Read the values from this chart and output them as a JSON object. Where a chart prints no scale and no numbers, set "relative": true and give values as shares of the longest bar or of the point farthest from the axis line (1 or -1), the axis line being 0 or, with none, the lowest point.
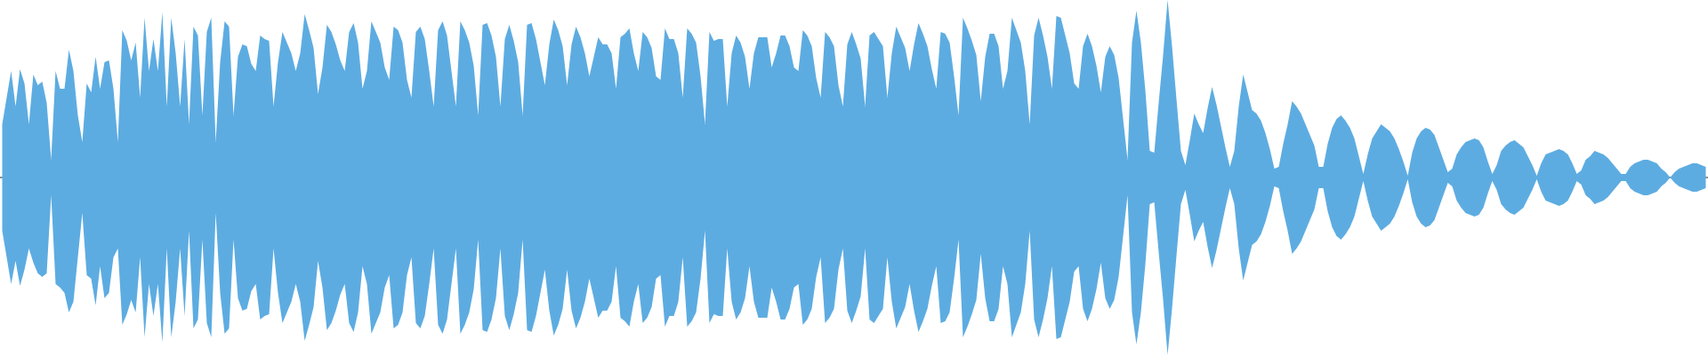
{
  "chart_data": {
    "type": "area",
    "relative": true,
    "categories": [
      null,
      null,
      null,
      null,
      null,
      null,
      null,
      null,
      null,
      null,
      null,
      null,
      null,
      null,
      null,
      null,
      null,
      null,
      null,
      null,
      null,
      null,
      null,
      null,
      null,
      null,
      null,
      null,
      null,
      null,
      null,
      null,
      null,
      null,
      null,
      null,
      null,
      null,
      null,
      null,
      null,
      null,
      null,
      null,
      null,
      null,
      null,
      null,
      null,
      null,
      null,
      null,
      null,
      null,
      null,
      null,
      null,
      null,
      null,
      null,
      null,
      null,
      null,
      null,
      null,
      null,
      null,
      null,
      null,
      null,
      null,
      null,
      null,
      null,
      null,
      null,
      null,
      null,
      null,
      null,
      null,
      null,
      null,
      null,
      null,
      null,
      null,
      null,
      null,
      null,
      null,
      null,
      null,
      null,
      null,
      null,
      null,
      null,
      null,
      null,
      null,
      null,
      null,
      null,
      null,
      null,
      null,
      null,
      null,
      null,
      null,
      null,
      null,
      null,
      null,
      null,
      null,
      null,
      null,
      null,
      null,
      null,
      null,
      null,
      null,
      null,
      null,
      null,
      null,
      null,
      null,
      null,
      null,
      null,
      null,
      null,
      null,
      null,
      null,
      null,
      null,
      null,
      null,
      null,
      null,
      null,
      null,
      null,
      null,
      null,
      null,
      null,
      null,
      null,
      null,
      null,
      null,
      null,
      null,
      null,
      null,
      null,
      null,
      null,
      null,
      null,
      null,
      null,
      null,
      null,
      null,
      null,
      null,
      null,
      null,
      null,
      null,
      null,
      null,
      null,
      null,
      null,
      null,
      null,
      null,
      null,
      null,
      null,
      null,
      null,
      null,
      null,
      null,
      null,
      null,
      null,
      null,
      null,
      null,
      null,
      null,
      null,
      null,
      null,
      null,
      null,
      null,
      null,
      null,
      null,
      null,
      null,
      null,
      null,
      null,
      null,
      null,
      null,
      null,
      null,
      null,
      null,
      null,
      null,
      null,
      null,
      null,
      null,
      null,
      null,
      null,
      null,
      null,
      null,
      null,
      null,
      null,
      null,
      null,
      null,
      null,
      null,
      null,
      null,
      null,
      null,
      null,
      null,
      null,
      null,
      null,
      null,
      null,
      null,
      null,
      null,
      null,
      null,
      null,
      null,
      null,
      null,
      null,
      null,
      null,
      null,
      null,
      null,
      null,
      null,
      null,
      null,
      null,
      null,
      null,
      null,
      null,
      null,
      null,
      null,
      null,
      null,
      null,
      null,
      null,
      null,
      null,
      null,
      null,
      null,
      null,
      null,
      null,
      null,
      null,
      null,
      null,
      null,
      null,
      null,
      null,
      null,
      null,
      null,
      null,
      null,
      null,
      null,
      null,
      null,
      null,
      null,
      null,
      null,
      null,
      null,
      null,
      null,
      null,
      null,
      null,
      null,
      null,
      null,
      null,
      null,
      null,
      null,
      null,
      null,
      null,
      null,
      null,
      null,
      null,
      null,
      null,
      null,
      null,
      null,
      null,
      null,
      null,
      null,
      null,
      null,
      null,
      null,
      null,
      null,
      null,
      null,
      null,
      null,
      null,
      null,
      null,
      null,
      null,
      null,
      null,
      null,
      null,
      null,
      null,
      null,
      null,
      null,
      null,
      null,
      null,
      null,
      null,
      null,
      null,
      null,
      null,
      null,
      null,
      null,
      null,
      null,
      null,
      null
    ],
    "series": [
      {
        "color": "#5dace1",
        "values": [
          0.3,
          0.45,
          0.6,
          0.4,
          0.61,
          0.53,
          0.3,
          0.58,
          0.52,
          0.54,
          0.42,
          0.1,
          0.6,
          0.5,
          0.5,
          0.72,
          0.6,
          0.35,
          0.2,
          0.53,
          0.48,
          0.68,
          0.5,
          0.65,
          0.66,
          0.5,
          0.2,
          0.83,
          0.77,
          0.66,
          0.76,
          0.45,
          0.9,
          0.6,
          0.78,
          0.6,
          0.93,
          0.4,
          0.9,
          0.7,
          0.4,
          0.78,
          0.3,
          0.85,
          0.8,
          0.35,
          0.82,
          0.9,
          0.2,
          0.65,
          0.88,
          0.85,
          0.35,
          0.68,
          0.75,
          0.74,
          0.64,
          0.6,
          0.8,
          0.78,
          0.77,
          0.4,
          0.65,
          0.82,
          0.76,
          0.7,
          0.6,
          0.7,
          0.92,
          0.83,
          0.73,
          0.47,
          0.62,
          0.86,
          0.82,
          0.75,
          0.66,
          0.6,
          0.82,
          0.87,
          0.76,
          0.5,
          0.6,
          0.88,
          0.82,
          0.76,
          0.62,
          0.55,
          0.85,
          0.83,
          0.76,
          0.55,
          0.45,
          0.82,
          0.85,
          0.78,
          0.6,
          0.4,
          0.83,
          0.88,
          0.8,
          0.6,
          0.4,
          0.88,
          0.83,
          0.76,
          0.63,
          0.35,
          0.86,
          0.87,
          0.8,
          0.68,
          0.4,
          0.78,
          0.86,
          0.77,
          0.65,
          0.35,
          0.86,
          0.87,
          0.78,
          0.65,
          0.52,
          0.75,
          0.89,
          0.83,
          0.74,
          0.52,
          0.75,
          0.85,
          0.79,
          0.7,
          0.57,
          0.68,
          0.79,
          0.75,
          0.75,
          0.7,
          0.5,
          0.79,
          0.81,
          0.84,
          0.7,
          0.6,
          0.82,
          0.79,
          0.73,
          0.57,
          0.55,
          0.84,
          0.78,
          0.78,
          0.7,
          0.45,
          0.84,
          0.81,
          0.76,
          0.57,
          0.3,
          0.82,
          0.77,
          0.78,
          0.78,
          0.4,
          0.7,
          0.8,
          0.76,
          0.68,
          0.5,
          0.7,
          0.79,
          0.79,
          0.79,
          0.62,
          0.7,
          0.8,
          0.8,
          0.74,
          0.62,
          0.6,
          0.83,
          0.8,
          0.74,
          0.56,
          0.45,
          0.82,
          0.79,
          0.74,
          0.52,
          0.4,
          0.75,
          0.82,
          0.75,
          0.67,
          0.4,
          0.8,
          0.82,
          0.78,
          0.74,
          0.45,
          0.7,
          0.85,
          0.79,
          0.73,
          0.6,
          0.75,
          0.87,
          0.81,
          0.74,
          0.61,
          0.5,
          0.82,
          0.81,
          0.76,
          0.57,
          0.35,
          0.9,
          0.84,
          0.77,
          0.69,
          0.43,
          0.68,
          0.81,
          0.81,
          0.74,
          0.5,
          0.6,
          0.9,
          0.83,
          0.76,
          0.6,
          0.3,
          0.8,
          0.9,
          0.8,
          0.68,
          0.5,
          0.91,
          0.9,
          0.8,
          0.7,
          0.53,
          0.5,
          0.74,
          0.81,
          0.74,
          0.63,
          0.48,
          0.68,
          0.74,
          0.69,
          0.56,
          0.33,
          0.1,
          0.76,
          0.94,
          0.76,
          0.49,
          0.15,
          0.14,
          0.42,
          0.69,
          1,
          0.74,
          0.44,
          0.15,
          0.07,
          0.21,
          0.36,
          0.3,
          0.25,
          0.39,
          0.51,
          0.41,
          0.29,
          0.17,
          0.06,
          0.15,
          0.4,
          0.58,
          0.48,
          0.38,
          0.36,
          0.32,
          0.25,
          0.16,
          0.05,
          0.06,
          0.19,
          0.3,
          0.43,
          0.4,
          0.36,
          0.3,
          0.24,
          0.18,
          0.06,
          0.06,
          0.19,
          0.28,
          0.33,
          0.35,
          0.32,
          0.28,
          0.22,
          0.12,
          0.02,
          0.13,
          0.22,
          0.26,
          0.3,
          0.28,
          0.26,
          0.22,
          0.16,
          0.09,
          0.01,
          0.14,
          0.22,
          0.26,
          0.28,
          0.27,
          0.24,
          0.17,
          0.1,
          0.03,
          0.05,
          0.13,
          0.17,
          0.2,
          0.21,
          0.22,
          0.21,
          0.17,
          0.09,
          0.02,
          0.07,
          0.15,
          0.18,
          0.2,
          0.21,
          0.19,
          0.17,
          0.12,
          0.07,
          0.01,
          0.08,
          0.13,
          0.14,
          0.15,
          0.16,
          0.15,
          0.13,
          0.08,
          0.02,
          0.04,
          0.1,
          0.12,
          0.15,
          0.14,
          0.13,
          0.11,
          0.08,
          0.05,
          0.02,
          0.02,
          0.06,
          0.08,
          0.09,
          0.1,
          0.1,
          0.09,
          0.08,
          0.05,
          0.03,
          0,
          0.03,
          0.05,
          0.06,
          0.07,
          0.08,
          0.08,
          0.07,
          0.06
        ]
      },
      {
        "color": "#5dace1",
        "values": [
          -0.3,
          -0.45,
          -0.6,
          -0.47,
          -0.61,
          -0.52,
          -0.4,
          -0.48,
          -0.54,
          -0.56,
          -0.54,
          -0.1,
          -0.6,
          -0.62,
          -0.65,
          -0.76,
          -0.7,
          -0.45,
          -0.2,
          -0.55,
          -0.57,
          -0.72,
          -0.5,
          -0.68,
          -0.65,
          -0.45,
          -0.4,
          -0.83,
          -0.77,
          -0.69,
          -0.76,
          -0.45,
          -0.9,
          -0.6,
          -0.78,
          -0.6,
          -0.93,
          -0.4,
          -0.9,
          -0.7,
          -0.4,
          -0.78,
          -0.3,
          -0.85,
          -0.8,
          -0.35,
          -0.82,
          -0.9,
          -0.2,
          -0.65,
          -0.88,
          -0.85,
          -0.35,
          -0.68,
          -0.75,
          -0.74,
          -0.64,
          -0.6,
          -0.8,
          -0.78,
          -0.77,
          -0.4,
          -0.65,
          -0.82,
          -0.76,
          -0.7,
          -0.6,
          -0.7,
          -0.92,
          -0.83,
          -0.73,
          -0.47,
          -0.62,
          -0.86,
          -0.82,
          -0.75,
          -0.66,
          -0.6,
          -0.82,
          -0.87,
          -0.76,
          -0.5,
          -0.6,
          -0.88,
          -0.82,
          -0.76,
          -0.62,
          -0.55,
          -0.85,
          -0.83,
          -0.76,
          -0.55,
          -0.45,
          -0.82,
          -0.85,
          -0.78,
          -0.6,
          -0.4,
          -0.83,
          -0.88,
          -0.8,
          -0.6,
          -0.4,
          -0.88,
          -0.83,
          -0.76,
          -0.63,
          -0.35,
          -0.86,
          -0.87,
          -0.8,
          -0.68,
          -0.4,
          -0.78,
          -0.86,
          -0.77,
          -0.65,
          -0.35,
          -0.86,
          -0.87,
          -0.78,
          -0.65,
          -0.52,
          -0.75,
          -0.89,
          -0.83,
          -0.74,
          -0.52,
          -0.75,
          -0.85,
          -0.79,
          -0.7,
          -0.57,
          -0.68,
          -0.79,
          -0.75,
          -0.75,
          -0.7,
          -0.5,
          -0.79,
          -0.81,
          -0.84,
          -0.7,
          -0.6,
          -0.82,
          -0.79,
          -0.73,
          -0.57,
          -0.55,
          -0.84,
          -0.78,
          -0.78,
          -0.7,
          -0.45,
          -0.84,
          -0.81,
          -0.76,
          -0.57,
          -0.3,
          -0.82,
          -0.77,
          -0.78,
          -0.78,
          -0.4,
          -0.7,
          -0.8,
          -0.76,
          -0.68,
          -0.5,
          -0.7,
          -0.79,
          -0.79,
          -0.79,
          -0.62,
          -0.7,
          -0.8,
          -0.8,
          -0.74,
          -0.62,
          -0.6,
          -0.83,
          -0.8,
          -0.74,
          -0.56,
          -0.45,
          -0.82,
          -0.79,
          -0.74,
          -0.52,
          -0.4,
          -0.75,
          -0.82,
          -0.75,
          -0.67,
          -0.4,
          -0.8,
          -0.82,
          -0.78,
          -0.74,
          -0.45,
          -0.7,
          -0.85,
          -0.79,
          -0.73,
          -0.6,
          -0.75,
          -0.87,
          -0.81,
          -0.74,
          -0.61,
          -0.5,
          -0.82,
          -0.81,
          -0.76,
          -0.57,
          -0.35,
          -0.9,
          -0.84,
          -0.77,
          -0.69,
          -0.43,
          -0.68,
          -0.81,
          -0.81,
          -0.74,
          -0.5,
          -0.6,
          -0.9,
          -0.83,
          -0.76,
          -0.6,
          -0.3,
          -0.8,
          -0.9,
          -0.8,
          -0.68,
          -0.5,
          -0.91,
          -0.9,
          -0.8,
          -0.7,
          -0.53,
          -0.5,
          -0.74,
          -0.81,
          -0.74,
          -0.63,
          -0.48,
          -0.68,
          -0.74,
          -0.69,
          -0.56,
          -0.33,
          -0.1,
          -0.76,
          -0.94,
          -0.76,
          -0.49,
          -0.15,
          -0.14,
          -0.42,
          -0.69,
          -1,
          -0.74,
          -0.44,
          -0.15,
          -0.07,
          -0.21,
          -0.36,
          -0.3,
          -0.25,
          -0.39,
          -0.51,
          -0.41,
          -0.29,
          -0.17,
          -0.06,
          -0.15,
          -0.4,
          -0.58,
          -0.48,
          -0.38,
          -0.36,
          -0.32,
          -0.25,
          -0.16,
          -0.05,
          -0.06,
          -0.19,
          -0.3,
          -0.43,
          -0.4,
          -0.36,
          -0.3,
          -0.24,
          -0.18,
          -0.06,
          -0.06,
          -0.19,
          -0.28,
          -0.33,
          -0.35,
          -0.32,
          -0.28,
          -0.22,
          -0.12,
          -0.02,
          -0.13,
          -0.22,
          -0.26,
          -0.3,
          -0.28,
          -0.26,
          -0.22,
          -0.16,
          -0.09,
          -0.01,
          -0.14,
          -0.22,
          -0.26,
          -0.28,
          -0.27,
          -0.24,
          -0.17,
          -0.1,
          -0.03,
          -0.05,
          -0.13,
          -0.17,
          -0.2,
          -0.21,
          -0.22,
          -0.21,
          -0.17,
          -0.09,
          -0.02,
          -0.07,
          -0.15,
          -0.18,
          -0.2,
          -0.21,
          -0.19,
          -0.17,
          -0.12,
          -0.07,
          -0.01,
          -0.08,
          -0.13,
          -0.14,
          -0.15,
          -0.16,
          -0.15,
          -0.13,
          -0.08,
          -0.02,
          -0.04,
          -0.1,
          -0.12,
          -0.15,
          -0.14,
          -0.13,
          -0.11,
          -0.08,
          -0.05,
          -0.02,
          -0.02,
          -0.06,
          -0.08,
          -0.09,
          -0.1,
          -0.1,
          -0.09,
          -0.08,
          -0.05,
          -0.03,
          0,
          -0.03,
          -0.05,
          -0.06,
          -0.07,
          -0.08,
          -0.08,
          -0.07,
          -0.06
        ]
      }
    ]
  }
}
